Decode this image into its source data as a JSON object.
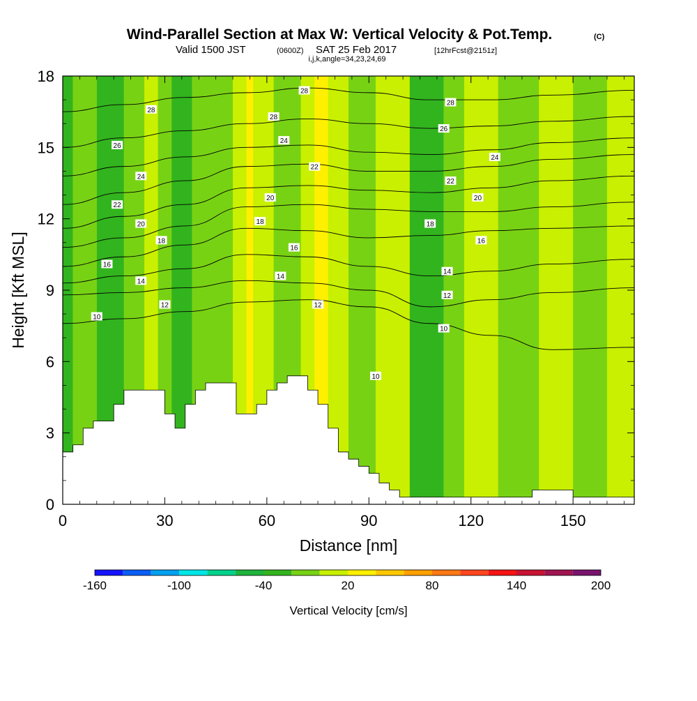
{
  "title": {
    "main": "Wind-Parallel Section at Max W: Vertical Velocity & Pot.Temp.",
    "copyright": "(C)",
    "valid_prefix": "Valid 1500 JST",
    "valid_z": "(0600Z)",
    "valid_date": "SAT 25 Feb 2017",
    "forecast": "[12hrFcst@2151z]",
    "indices": "i,j,k,angle=34,23,24,69"
  },
  "chart_data": {
    "type": "heatmap",
    "xlabel": "Distance [nm]",
    "ylabel": "Height [Kft MSL]",
    "xlim": [
      0,
      168
    ],
    "ylim": [
      0,
      18
    ],
    "xticks": [
      "0",
      "30",
      "60",
      "90",
      "120",
      "150"
    ],
    "yticks": [
      "0",
      "3",
      "6",
      "9",
      "12",
      "15",
      "18"
    ],
    "colorbar": {
      "label": "Vertical Velocity [cm/s]",
      "min": -160,
      "max": 200,
      "step": 20,
      "tick_labels": [
        "-160",
        "-100",
        "-40",
        "20",
        "80",
        "140",
        "200"
      ],
      "colors": [
        "#1414ff",
        "#0a5ef5",
        "#00a0f0",
        "#00e6e6",
        "#00d28c",
        "#1eb43c",
        "#32b41e",
        "#78d214",
        "#c8f000",
        "#fff000",
        "#ffc800",
        "#ffa000",
        "#ff7814",
        "#ff461e",
        "#f51414",
        "#c81432",
        "#a01450",
        "#78146e"
      ]
    },
    "vertical_velocity_bands": [
      {
        "x0": 0,
        "x1": 3,
        "level": "-40"
      },
      {
        "x0": 3,
        "x1": 10,
        "level": "-20"
      },
      {
        "x0": 10,
        "x1": 18,
        "level": "-40"
      },
      {
        "x0": 18,
        "x1": 24,
        "level": "-20"
      },
      {
        "x0": 24,
        "x1": 28,
        "level": "0"
      },
      {
        "x0": 28,
        "x1": 32,
        "level": "-20"
      },
      {
        "x0": 32,
        "x1": 38,
        "level": "-40"
      },
      {
        "x0": 38,
        "x1": 50,
        "level": "-20"
      },
      {
        "x0": 50,
        "x1": 54,
        "level": "0"
      },
      {
        "x0": 54,
        "x1": 56,
        "level": "20"
      },
      {
        "x0": 56,
        "x1": 62,
        "level": "0"
      },
      {
        "x0": 62,
        "x1": 70,
        "level": "-20"
      },
      {
        "x0": 70,
        "x1": 74,
        "level": "0"
      },
      {
        "x0": 74,
        "x1": 78,
        "level": "20"
      },
      {
        "x0": 78,
        "x1": 84,
        "level": "0"
      },
      {
        "x0": 84,
        "x1": 92,
        "level": "-20"
      },
      {
        "x0": 92,
        "x1": 102,
        "level": "0"
      },
      {
        "x0": 102,
        "x1": 112,
        "level": "-40"
      },
      {
        "x0": 112,
        "x1": 118,
        "level": "-20"
      },
      {
        "x0": 118,
        "x1": 128,
        "level": "0"
      },
      {
        "x0": 128,
        "x1": 140,
        "level": "-20"
      },
      {
        "x0": 140,
        "x1": 150,
        "level": "0"
      },
      {
        "x0": 150,
        "x1": 160,
        "level": "-20"
      },
      {
        "x0": 160,
        "x1": 168,
        "level": "0"
      }
    ],
    "terrain": [
      {
        "x": 0,
        "h": 2.2
      },
      {
        "x": 3,
        "h": 2.5
      },
      {
        "x": 6,
        "h": 3.2
      },
      {
        "x": 9,
        "h": 3.5
      },
      {
        "x": 12,
        "h": 3.5
      },
      {
        "x": 15,
        "h": 4.2
      },
      {
        "x": 18,
        "h": 4.8
      },
      {
        "x": 21,
        "h": 4.8
      },
      {
        "x": 24,
        "h": 4.8
      },
      {
        "x": 27,
        "h": 4.8
      },
      {
        "x": 30,
        "h": 3.8
      },
      {
        "x": 33,
        "h": 3.2
      },
      {
        "x": 36,
        "h": 4.2
      },
      {
        "x": 39,
        "h": 4.8
      },
      {
        "x": 42,
        "h": 5.1
      },
      {
        "x": 45,
        "h": 5.1
      },
      {
        "x": 48,
        "h": 5.1
      },
      {
        "x": 51,
        "h": 3.8
      },
      {
        "x": 54,
        "h": 3.8
      },
      {
        "x": 57,
        "h": 4.2
      },
      {
        "x": 60,
        "h": 4.8
      },
      {
        "x": 63,
        "h": 5.1
      },
      {
        "x": 66,
        "h": 5.4
      },
      {
        "x": 69,
        "h": 5.4
      },
      {
        "x": 72,
        "h": 4.8
      },
      {
        "x": 75,
        "h": 4.2
      },
      {
        "x": 78,
        "h": 3.2
      },
      {
        "x": 81,
        "h": 2.2
      },
      {
        "x": 84,
        "h": 1.9
      },
      {
        "x": 87,
        "h": 1.6
      },
      {
        "x": 90,
        "h": 1.3
      },
      {
        "x": 93,
        "h": 0.9
      },
      {
        "x": 96,
        "h": 0.6
      },
      {
        "x": 99,
        "h": 0.3
      },
      {
        "x": 102,
        "h": 0.3
      },
      {
        "x": 138,
        "h": 0.6
      },
      {
        "x": 150,
        "h": 0.3
      },
      {
        "x": 168,
        "h": 0.3
      }
    ],
    "potential_temperature_contours": [
      {
        "value": "10",
        "label": "10",
        "heights": [
          7.6,
          7.8,
          8.1,
          8.5,
          8.6,
          8.3,
          7.6,
          7.1,
          6.5,
          6.6
        ]
      },
      {
        "value": "12",
        "label": "12",
        "heights": [
          8.8,
          8.9,
          9.1,
          9.4,
          9.3,
          9.0,
          8.3,
          8.6,
          8.9,
          9.1
        ]
      },
      {
        "value": "14",
        "label": "14",
        "heights": [
          9.3,
          9.6,
          9.9,
          10.5,
          10.4,
          10.0,
          9.6,
          9.8,
          10.1,
          10.3
        ]
      },
      {
        "value": "16",
        "label": "16",
        "heights": [
          10.0,
          10.4,
          10.9,
          11.6,
          11.5,
          11.2,
          11.3,
          11.5,
          11.6,
          11.7
        ]
      },
      {
        "value": "18",
        "label": "18",
        "heights": [
          10.8,
          11.2,
          11.7,
          12.5,
          12.6,
          12.4,
          12.3,
          12.3,
          12.5,
          12.7
        ]
      },
      {
        "value": "20",
        "label": "20",
        "heights": [
          11.6,
          12.1,
          12.6,
          13.3,
          13.4,
          13.2,
          13.1,
          13.3,
          13.6,
          13.8
        ]
      },
      {
        "value": "22",
        "label": "22",
        "heights": [
          12.6,
          13.1,
          13.6,
          14.2,
          14.3,
          14.0,
          14.0,
          14.2,
          14.5,
          14.7
        ]
      },
      {
        "value": "24",
        "label": "24",
        "heights": [
          13.8,
          14.2,
          14.6,
          15.0,
          15.1,
          14.8,
          14.7,
          14.9,
          15.2,
          15.4
        ]
      },
      {
        "value": "26",
        "label": "26",
        "heights": [
          15.0,
          15.4,
          15.7,
          16.0,
          16.2,
          16.0,
          15.8,
          15.9,
          16.1,
          16.3
        ]
      },
      {
        "value": "28",
        "label": "28",
        "heights": [
          16.5,
          16.8,
          17.1,
          17.3,
          17.5,
          17.3,
          17.0,
          17.0,
          17.2,
          17.4
        ]
      }
    ],
    "contour_x": [
      0,
      18,
      36,
      54,
      72,
      90,
      108,
      126,
      144,
      168
    ],
    "contour_label_positions": [
      {
        "label": "10",
        "x": 10,
        "y": 7.9
      },
      {
        "label": "12",
        "x": 30,
        "y": 8.4
      },
      {
        "label": "14",
        "x": 23,
        "y": 9.4
      },
      {
        "label": "16",
        "x": 13,
        "y": 10.1
      },
      {
        "label": "18",
        "x": 29,
        "y": 11.1
      },
      {
        "label": "20",
        "x": 23,
        "y": 11.8
      },
      {
        "label": "22",
        "x": 16,
        "y": 12.6
      },
      {
        "label": "24",
        "x": 23,
        "y": 13.8
      },
      {
        "label": "26",
        "x": 16,
        "y": 15.1
      },
      {
        "label": "28",
        "x": 26,
        "y": 16.6
      },
      {
        "label": "28",
        "x": 71,
        "y": 17.4
      },
      {
        "label": "28",
        "x": 62,
        "y": 16.3
      },
      {
        "label": "24",
        "x": 65,
        "y": 15.3
      },
      {
        "label": "22",
        "x": 74,
        "y": 14.2
      },
      {
        "label": "20",
        "x": 61,
        "y": 12.9
      },
      {
        "label": "18",
        "x": 58,
        "y": 11.9
      },
      {
        "label": "16",
        "x": 68,
        "y": 10.8
      },
      {
        "label": "14",
        "x": 64,
        "y": 9.6
      },
      {
        "label": "12",
        "x": 75,
        "y": 8.4
      },
      {
        "label": "10",
        "x": 92,
        "y": 5.4
      },
      {
        "label": "28",
        "x": 114,
        "y": 16.9
      },
      {
        "label": "26",
        "x": 112,
        "y": 15.8
      },
      {
        "label": "24",
        "x": 127,
        "y": 14.6
      },
      {
        "label": "22",
        "x": 114,
        "y": 13.6
      },
      {
        "label": "20",
        "x": 122,
        "y": 12.9
      },
      {
        "label": "18",
        "x": 108,
        "y": 11.8
      },
      {
        "label": "16",
        "x": 123,
        "y": 11.1
      },
      {
        "label": "14",
        "x": 113,
        "y": 9.8
      },
      {
        "label": "12",
        "x": 113,
        "y": 8.8
      },
      {
        "label": "10",
        "x": 112,
        "y": 7.4
      }
    ]
  }
}
